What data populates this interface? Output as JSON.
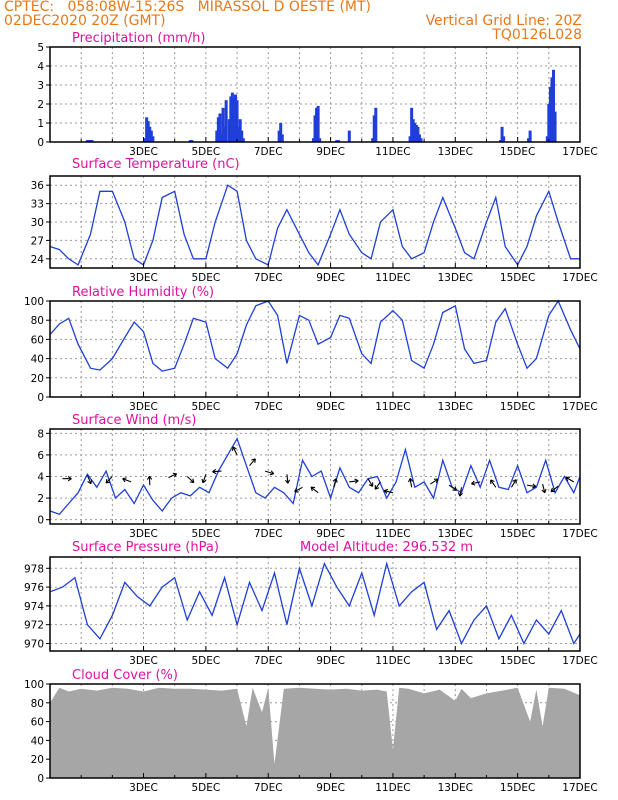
{
  "header": {
    "line1_left": "CPTEC:   058:08W-15:26S   MIRASSOL D OESTE (MT)",
    "line2_left": "02DEC2020 20Z (GMT)",
    "line2_right": "Vertical Grid Line: 20Z",
    "line3_right": "TQ0126L028"
  },
  "colors": {
    "header": "#e87818",
    "panel_title": "#e0119e",
    "series": "#1f3fd8",
    "cloud_fill": "#a6a6a6",
    "wind_arrow": "#000000",
    "grid": "#9a9a9a"
  },
  "chart_data": [
    {
      "type": "bar",
      "title": "Precipitation (mm/h)",
      "x_tick_labels": [
        "3DEC",
        "5DEC",
        "7DEC",
        "9DEC",
        "11DEC",
        "13DEC",
        "15DEC",
        "17DEC"
      ],
      "yticks": [
        0,
        1,
        2,
        3,
        4,
        5
      ],
      "ylim": [
        0,
        5
      ],
      "grid": true,
      "series": [
        {
          "days": [
            1.2,
            1.25,
            1.3,
            1.35,
            3.05,
            3.1,
            3.15,
            3.2,
            3.25,
            3.3,
            4.5,
            4.55,
            5.35,
            5.4,
            5.45,
            5.5,
            5.55,
            5.6,
            5.65,
            5.75,
            5.8,
            5.85,
            5.9,
            5.95,
            6.0,
            6.05,
            6.1,
            6.15,
            6.2,
            7.35,
            7.4,
            7.45,
            8.45,
            8.5,
            8.55,
            8.6,
            8.65,
            9.2,
            9.25,
            9.6,
            10.35,
            10.4,
            10.45,
            11.55,
            11.6,
            11.65,
            11.7,
            11.75,
            11.8,
            11.85,
            11.9,
            14.45,
            14.5,
            14.55,
            15.35,
            15.4,
            15.95,
            16.0,
            16.05,
            16.1,
            16.15,
            16.2
          ],
          "values": [
            0.1,
            0.1,
            0.1,
            0.1,
            0.2,
            1.3,
            1.1,
            0.8,
            0.6,
            0.3,
            0.1,
            0.1,
            0.6,
            1.3,
            1.5,
            0.4,
            1.8,
            0.8,
            2.2,
            1.2,
            2.4,
            2.6,
            2.3,
            2.5,
            2.2,
            0.8,
            1.2,
            0.6,
            0.2,
            0.6,
            1.0,
            0.4,
            0.2,
            1.4,
            1.8,
            1.9,
            0.2,
            0.1,
            0.1,
            0.6,
            0.2,
            1.4,
            1.8,
            0.3,
            1.8,
            1.2,
            1.0,
            0.9,
            0.8,
            0.4,
            0.2,
            0.1,
            0.8,
            0.3,
            0.2,
            0.6,
            0.3,
            2.0,
            2.9,
            3.4,
            3.8,
            1.6
          ]
        }
      ]
    },
    {
      "type": "line",
      "title": "Surface Temperature (nC)",
      "x_tick_labels": [
        "3DEC",
        "5DEC",
        "7DEC",
        "9DEC",
        "11DEC",
        "13DEC",
        "15DEC",
        "17DEC"
      ],
      "yticks": [
        24,
        27,
        30,
        33,
        36
      ],
      "ylim": [
        22.5,
        37.5
      ],
      "grid": true,
      "series": [
        {
          "days": [
            0.0,
            0.3,
            0.6,
            0.9,
            1.3,
            1.6,
            2.0,
            2.4,
            2.7,
            3.0,
            3.3,
            3.6,
            4.0,
            4.3,
            4.6,
            5.0,
            5.3,
            5.7,
            6.0,
            6.3,
            6.6,
            7.0,
            7.3,
            7.6,
            8.0,
            8.3,
            8.6,
            9.0,
            9.3,
            9.6,
            10.0,
            10.3,
            10.6,
            11.0,
            11.3,
            11.6,
            12.0,
            12.3,
            12.6,
            13.0,
            13.3,
            13.6,
            14.0,
            14.3,
            14.6,
            15.0,
            15.3,
            15.6,
            16.0,
            16.3,
            16.7,
            17.0
          ],
          "values": [
            26,
            25.5,
            24,
            23,
            28,
            35,
            35,
            30,
            24,
            23,
            27,
            34,
            35,
            28,
            24,
            24,
            30,
            36,
            35,
            27,
            24,
            23,
            29,
            32,
            28,
            25,
            23,
            28,
            32,
            28,
            25,
            24,
            30,
            32,
            26,
            24,
            25,
            30,
            34,
            29,
            25,
            24,
            30,
            34,
            26,
            23,
            26,
            31,
            35,
            30,
            24,
            24
          ]
        }
      ]
    },
    {
      "type": "line",
      "title": "Relative Humidity (%)",
      "x_tick_labels": [
        "3DEC",
        "5DEC",
        "7DEC",
        "9DEC",
        "11DEC",
        "13DEC",
        "15DEC",
        "17DEC"
      ],
      "yticks": [
        0,
        20,
        40,
        60,
        80,
        100
      ],
      "ylim": [
        0,
        100
      ],
      "grid": true,
      "series": [
        {
          "days": [
            0.0,
            0.3,
            0.6,
            0.9,
            1.3,
            1.6,
            2.0,
            2.4,
            2.7,
            3.0,
            3.3,
            3.6,
            4.0,
            4.3,
            4.6,
            5.0,
            5.3,
            5.7,
            6.0,
            6.3,
            6.6,
            7.0,
            7.3,
            7.6,
            8.0,
            8.3,
            8.6,
            9.0,
            9.3,
            9.6,
            10.0,
            10.3,
            10.6,
            11.0,
            11.3,
            11.6,
            12.0,
            12.3,
            12.6,
            13.0,
            13.3,
            13.6,
            14.0,
            14.3,
            14.6,
            15.0,
            15.3,
            15.6,
            16.0,
            16.3,
            16.7,
            17.0
          ],
          "values": [
            65,
            76,
            82,
            55,
            30,
            28,
            40,
            62,
            78,
            68,
            35,
            27,
            30,
            55,
            82,
            78,
            40,
            30,
            45,
            75,
            95,
            100,
            85,
            35,
            85,
            80,
            55,
            62,
            85,
            82,
            45,
            35,
            78,
            90,
            80,
            38,
            30,
            55,
            88,
            95,
            50,
            35,
            38,
            78,
            92,
            55,
            30,
            40,
            85,
            100,
            70,
            50
          ]
        }
      ]
    },
    {
      "type": "line",
      "title": "Surface Wind (m/s)",
      "x_tick_labels": [
        "3DEC",
        "5DEC",
        "7DEC",
        "9DEC",
        "11DEC",
        "13DEC",
        "15DEC",
        "17DEC"
      ],
      "yticks": [
        0,
        2,
        4,
        6,
        8
      ],
      "ylim": [
        -0.4,
        8.4
      ],
      "grid": true,
      "series": [
        {
          "days": [
            0.0,
            0.3,
            0.6,
            0.9,
            1.2,
            1.5,
            1.8,
            2.1,
            2.4,
            2.7,
            3.0,
            3.3,
            3.6,
            3.9,
            4.2,
            4.5,
            4.8,
            5.1,
            5.4,
            5.7,
            6.0,
            6.3,
            6.6,
            6.9,
            7.2,
            7.5,
            7.8,
            8.1,
            8.4,
            8.7,
            9.0,
            9.3,
            9.6,
            9.9,
            10.2,
            10.5,
            10.8,
            11.1,
            11.4,
            11.7,
            12.0,
            12.3,
            12.6,
            12.9,
            13.2,
            13.5,
            13.8,
            14.1,
            14.4,
            14.7,
            15.0,
            15.3,
            15.6,
            15.9,
            16.2,
            16.5,
            16.8,
            17.0
          ],
          "values": [
            0.8,
            0.5,
            1.5,
            2.5,
            4.2,
            3.0,
            4.5,
            2.0,
            2.8,
            1.5,
            3.2,
            1.8,
            0.8,
            2.0,
            2.5,
            2.2,
            3.0,
            2.5,
            4.5,
            6.0,
            7.5,
            5.0,
            2.5,
            2.0,
            3.0,
            2.5,
            1.5,
            5.5,
            4.0,
            4.5,
            2.0,
            4.8,
            3.0,
            2.5,
            3.8,
            4.0,
            2.0,
            3.5,
            6.5,
            3.0,
            3.5,
            2.0,
            5.5,
            3.0,
            2.5,
            5.0,
            3.0,
            5.5,
            3.0,
            2.8,
            5.0,
            2.5,
            3.0,
            5.5,
            2.5,
            4.0,
            2.5,
            4.0
          ]
        }
      ],
      "arrow_days": [
        0.4,
        1.2,
        2.0,
        2.6,
        3.2,
        3.8,
        4.4,
        5.0,
        5.5,
        6.0,
        6.4,
        6.9,
        7.6,
        8.1,
        8.6,
        9.1,
        9.6,
        10.2,
        10.6,
        11.0,
        11.6,
        12.2,
        12.8,
        13.2,
        13.8,
        14.3,
        14.8,
        15.3,
        15.8,
        16.3,
        16.8
      ],
      "arrow_speeds": [
        3.8,
        4.1,
        4.0,
        3.5,
        3.2,
        3.9,
        4.0,
        4.2,
        4.5,
        6.0,
        5.0,
        4.5,
        4.2,
        3.0,
        2.5,
        3.0,
        3.5,
        3.8,
        3.5,
        2.5,
        3.0,
        3.3,
        3.2,
        3.0,
        3.5,
        3.0,
        3.0,
        3.2,
        3.3,
        3.1,
        3.5
      ]
    },
    {
      "type": "line",
      "title": "Surface Pressure (hPa)",
      "annotation": "Model Altitude: 296.532 m",
      "x_tick_labels": [
        "3DEC",
        "5DEC",
        "7DEC",
        "9DEC",
        "11DEC",
        "13DEC",
        "15DEC",
        "17DEC"
      ],
      "yticks": [
        970,
        972,
        974,
        976,
        978
      ],
      "ylim": [
        969.2,
        979.2
      ],
      "grid": true,
      "series": [
        {
          "days": [
            0.0,
            0.4,
            0.8,
            1.2,
            1.6,
            2.0,
            2.4,
            2.8,
            3.2,
            3.6,
            4.0,
            4.4,
            4.8,
            5.2,
            5.6,
            6.0,
            6.4,
            6.8,
            7.2,
            7.6,
            8.0,
            8.4,
            8.8,
            9.2,
            9.6,
            10.0,
            10.4,
            10.8,
            11.2,
            11.6,
            12.0,
            12.4,
            12.8,
            13.2,
            13.6,
            14.0,
            14.4,
            14.8,
            15.2,
            15.6,
            16.0,
            16.4,
            16.8,
            17.0
          ],
          "values": [
            975.5,
            976,
            977,
            972,
            970.5,
            973,
            976.5,
            975,
            974,
            976,
            977,
            972.5,
            975.5,
            973,
            977,
            972,
            976.5,
            973.5,
            977.5,
            972,
            978,
            974,
            978.5,
            976,
            974,
            977.5,
            973,
            978.5,
            974,
            975.5,
            976.5,
            971.5,
            973.5,
            970,
            972.5,
            974,
            970.5,
            973,
            970,
            972.5,
            971,
            973.5,
            970,
            971
          ]
        }
      ]
    },
    {
      "type": "area",
      "title": "Cloud Cover (%)",
      "x_tick_labels": [
        "3DEC",
        "5DEC",
        "7DEC",
        "9DEC",
        "11DEC",
        "13DEC",
        "15DEC",
        "17DEC"
      ],
      "yticks": [
        0,
        20,
        40,
        60,
        80,
        100
      ],
      "ylim": [
        0,
        100
      ],
      "grid": true,
      "series": [
        {
          "days": [
            0.0,
            0.3,
            0.6,
            1.0,
            1.5,
            2.0,
            2.5,
            3.0,
            3.5,
            4.0,
            4.5,
            5.0,
            5.5,
            6.0,
            6.3,
            6.5,
            6.8,
            7.0,
            7.2,
            7.5,
            8.0,
            8.5,
            9.0,
            9.5,
            10.0,
            10.5,
            10.8,
            11.0,
            11.2,
            11.5,
            12.0,
            12.5,
            13.0,
            13.2,
            13.5,
            14.0,
            14.5,
            15.0,
            15.4,
            15.6,
            15.8,
            16.0,
            16.5,
            17.0
          ],
          "values": [
            80,
            96,
            92,
            95,
            93,
            96,
            95,
            92,
            96,
            95,
            95,
            94,
            93,
            95,
            55,
            96,
            70,
            96,
            15,
            95,
            96,
            95,
            94,
            95,
            93,
            94,
            92,
            30,
            96,
            95,
            90,
            94,
            82,
            95,
            85,
            90,
            93,
            96,
            60,
            94,
            55,
            96,
            95,
            88
          ]
        }
      ]
    }
  ]
}
